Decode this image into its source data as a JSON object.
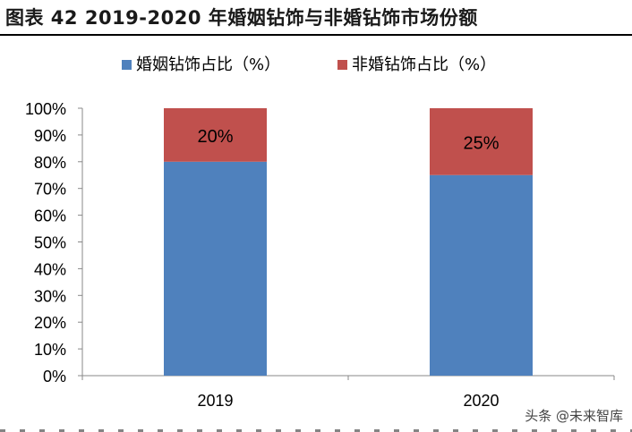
{
  "title": "图表 42 2019-2020 年婚姻钻饰与非婚钻饰市场份额",
  "watermark": "头条 @未来智库",
  "chart_data": {
    "type": "bar",
    "stacked": true,
    "percent_stacked": true,
    "categories": [
      "2019",
      "2020"
    ],
    "series": [
      {
        "name": "婚姻钻饰占比（%）",
        "values": [
          80,
          75
        ],
        "color": "#4F81BD",
        "labels": [
          "",
          ""
        ]
      },
      {
        "name": "非婚钻饰占比（%）",
        "values": [
          20,
          25
        ],
        "color": "#C0504D",
        "labels": [
          "20%",
          "25%"
        ]
      }
    ],
    "ylim": [
      0,
      100
    ],
    "yticks": [
      "0%",
      "10%",
      "20%",
      "30%",
      "40%",
      "50%",
      "60%",
      "70%",
      "80%",
      "90%",
      "100%"
    ],
    "grid": false,
    "legend": "top-center",
    "xlabel": "",
    "ylabel": ""
  }
}
